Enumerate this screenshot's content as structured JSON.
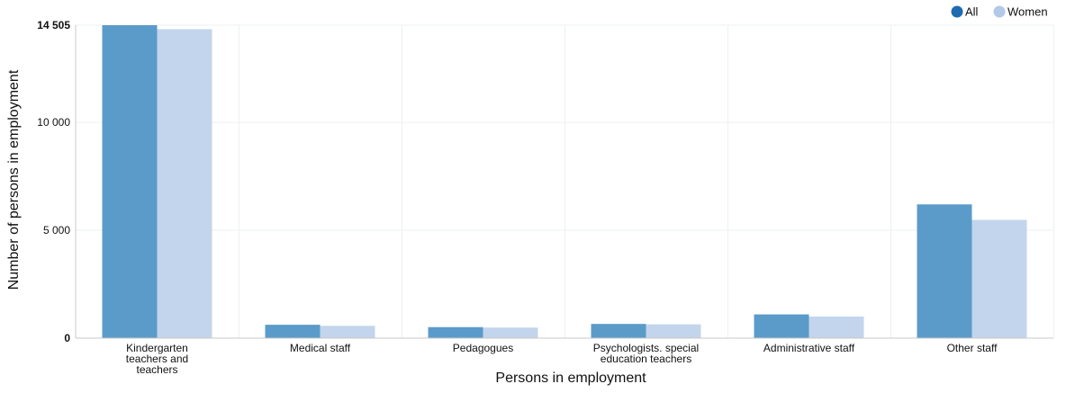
{
  "chart_data": {
    "type": "bar",
    "xlabel": "Persons in employment",
    "ylabel": "Number of persons in employment",
    "categories": [
      [
        "Kindergarten",
        "teachers and",
        "teachers"
      ],
      [
        "Medical staff"
      ],
      [
        "Pedagogues"
      ],
      [
        "Psychologists. special",
        "education teachers"
      ],
      [
        "Administrative staff"
      ],
      [
        "Other staff"
      ]
    ],
    "series": [
      {
        "name": "All",
        "color": "#5b9bc9",
        "values": [
          14505,
          620,
          510,
          660,
          1100,
          6200
        ]
      },
      {
        "name": "Women",
        "color": "#c3d5ec",
        "values": [
          14320,
          570,
          490,
          640,
          1000,
          5480
        ]
      }
    ],
    "ylim": [
      0,
      14505
    ],
    "yticks": [
      {
        "value": 0,
        "label": "0",
        "bold": true
      },
      {
        "value": 5000,
        "label": "5 000",
        "bold": false
      },
      {
        "value": 10000,
        "label": "10 000",
        "bold": false
      },
      {
        "value": 14505,
        "label": "14 505",
        "bold": true
      }
    ],
    "legend_position": "top-right",
    "legend_marker_colors": [
      "#1f6bb0",
      "#b3c9e8"
    ],
    "grid": true
  }
}
